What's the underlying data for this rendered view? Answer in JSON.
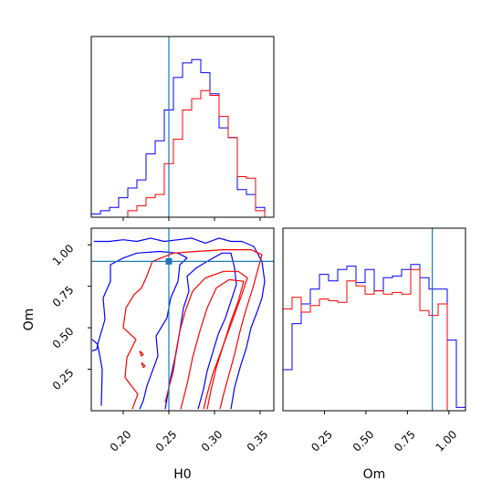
{
  "chart_data": {
    "type": "corner",
    "parameters": [
      "H0",
      "Om"
    ],
    "truth": {
      "H0": 0.25,
      "Om": 0.9
    },
    "colors": {
      "blue": "#0000ff",
      "red": "#ff0000",
      "truth": "#1f77b4"
    },
    "grid": false,
    "panels": [
      {
        "id": "hist-h0",
        "type": "histogram",
        "xlim": [
          0.165,
          0.365
        ],
        "ylim": [
          0,
          1
        ],
        "xticks": [
          0.2,
          0.25,
          0.3,
          0.35
        ],
        "show_tick_labels": false,
        "series": [
          {
            "color": "blue",
            "bins": [
              0.165,
              0.175,
              0.185,
              0.195,
              0.205,
              0.215,
              0.225,
              0.235,
              0.245,
              0.255,
              0.265,
              0.275,
              0.285,
              0.295,
              0.305,
              0.315,
              0.325,
              0.335,
              0.345,
              0.355
            ],
            "heights": [
              0.02,
              0.04,
              0.06,
              0.12,
              0.18,
              0.23,
              0.39,
              0.47,
              0.66,
              0.86,
              0.95,
              0.97,
              0.89,
              0.76,
              0.55,
              0.49,
              0.17,
              0.14,
              0.06
            ]
          },
          {
            "color": "red",
            "bins": [
              0.165,
              0.175,
              0.185,
              0.195,
              0.205,
              0.215,
              0.225,
              0.235,
              0.245,
              0.255,
              0.265,
              0.275,
              0.285,
              0.295,
              0.305,
              0.315,
              0.325,
              0.335,
              0.345,
              0.355
            ],
            "heights": [
              0,
              0,
              0,
              0,
              0.04,
              0.07,
              0.12,
              0.14,
              0.33,
              0.48,
              0.66,
              0.73,
              0.78,
              0.75,
              0.62,
              0.49,
              0.25,
              0.24,
              0.04
            ]
          }
        ]
      },
      {
        "id": "hist-om",
        "type": "histogram",
        "xlim": [
          0.0,
          1.1
        ],
        "ylim": [
          0,
          1
        ],
        "xticks": [
          0.25,
          0.5,
          0.75,
          1.0
        ],
        "tick_labels": [
          "0.25",
          "0.50",
          "0.75",
          "1.00"
        ],
        "xlabel": "Om",
        "series": [
          {
            "color": "blue",
            "bins": [
              0.0,
              0.055,
              0.11,
              0.165,
              0.22,
              0.275,
              0.33,
              0.385,
              0.44,
              0.495,
              0.55,
              0.605,
              0.66,
              0.715,
              0.77,
              0.825,
              0.88,
              0.935,
              0.99,
              1.045,
              1.1
            ],
            "heights": [
              0.25,
              0.53,
              0.65,
              0.74,
              0.83,
              0.79,
              0.86,
              0.88,
              0.78,
              0.86,
              0.73,
              0.81,
              0.82,
              0.86,
              0.89,
              0.81,
              0.74,
              0.74,
              0.43,
              0.02
            ]
          },
          {
            "color": "red",
            "bins": [
              0.0,
              0.055,
              0.11,
              0.165,
              0.22,
              0.275,
              0.33,
              0.385,
              0.44,
              0.495,
              0.55,
              0.605,
              0.66,
              0.715,
              0.77,
              0.825,
              0.88,
              0.935,
              0.99,
              1.045,
              1.1
            ],
            "heights": [
              0.62,
              0.69,
              0.6,
              0.64,
              0.68,
              0.67,
              0.66,
              0.79,
              0.76,
              0.71,
              0.73,
              0.71,
              0.72,
              0.71,
              0.86,
              0.61,
              0.58,
              0.65,
              0.0,
              0.0
            ]
          }
        ]
      },
      {
        "id": "scatter-h0-om",
        "type": "contour",
        "xlim": [
          0.165,
          0.365
        ],
        "ylim": [
          0.0,
          1.1
        ],
        "xticks": [
          0.2,
          0.25,
          0.3,
          0.35
        ],
        "tick_labels_x": [
          "0.20",
          "0.25",
          "0.30",
          "0.35"
        ],
        "yticks": [
          0.25,
          0.5,
          0.75,
          1.0
        ],
        "tick_labels_y": [
          "0.25",
          "0.50",
          "0.75",
          "1.00"
        ],
        "xlabel": "H0",
        "ylabel": "Om",
        "contours": [
          {
            "color": "blue",
            "points": [
              [
                0.168,
                1.02
              ],
              [
                0.185,
                1.02
              ],
              [
                0.2,
                1.03
              ],
              [
                0.215,
                1.02
              ],
              [
                0.23,
                1.04
              ],
              [
                0.245,
                1.02
              ],
              [
                0.26,
                1.03
              ],
              [
                0.275,
                1.04
              ],
              [
                0.29,
                1.01
              ],
              [
                0.305,
                1.04
              ],
              [
                0.318,
                1.02
              ],
              [
                0.33,
                1.02
              ],
              [
                0.343,
                0.99
              ],
              [
                0.352,
                0.9
              ],
              [
                0.355,
                0.78
              ],
              [
                0.352,
                0.68
              ],
              [
                0.347,
                0.6
              ],
              [
                0.34,
                0.5
              ],
              [
                0.335,
                0.38
              ],
              [
                0.328,
                0.26
              ],
              [
                0.322,
                0.14
              ],
              [
                0.318,
                0.01
              ]
            ]
          },
          {
            "color": "blue",
            "points": [
              [
                0.176,
                0.03
              ],
              [
                0.177,
                0.25
              ],
              [
                0.172,
                0.4
              ],
              [
                0.18,
                0.55
              ],
              [
                0.178,
                0.68
              ],
              [
                0.186,
                0.78
              ],
              [
                0.186,
                0.88
              ],
              [
                0.2,
                0.92
              ],
              [
                0.215,
                0.95
              ],
              [
                0.24,
                0.96
              ],
              [
                0.26,
                0.95
              ],
              [
                0.27,
                0.92
              ],
              [
                0.262,
                0.88
              ],
              [
                0.26,
                0.78
              ],
              [
                0.252,
                0.68
              ],
              [
                0.248,
                0.56
              ],
              [
                0.236,
                0.45
              ],
              [
                0.238,
                0.33
              ],
              [
                0.232,
                0.24
              ],
              [
                0.226,
                0.15
              ],
              [
                0.222,
                0.06
              ],
              [
                0.218,
                0.01
              ]
            ]
          },
          {
            "color": "blue",
            "points": [
              [
                0.246,
                0.01
              ],
              [
                0.252,
                0.2
              ],
              [
                0.258,
                0.35
              ],
              [
                0.262,
                0.48
              ],
              [
                0.266,
                0.62
              ],
              [
                0.272,
                0.72
              ],
              [
                0.27,
                0.81
              ],
              [
                0.28,
                0.86
              ],
              [
                0.292,
                0.9
              ],
              [
                0.308,
                0.95
              ],
              [
                0.318,
                0.95
              ],
              [
                0.322,
                0.86
              ],
              [
                0.324,
                0.76
              ],
              [
                0.318,
                0.66
              ],
              [
                0.312,
                0.56
              ],
              [
                0.304,
                0.46
              ],
              [
                0.298,
                0.35
              ],
              [
                0.292,
                0.24
              ],
              [
                0.288,
                0.13
              ],
              [
                0.282,
                0.01
              ]
            ]
          },
          {
            "color": "blue",
            "points": [
              [
                0.166,
                0.43
              ],
              [
                0.172,
                0.4
              ],
              [
                0.171,
                0.37
              ],
              [
                0.166,
                0.36
              ]
            ]
          },
          {
            "color": "red",
            "points": [
              [
                0.21,
                0.01
              ],
              [
                0.216,
                0.1
              ],
              [
                0.202,
                0.2
              ],
              [
                0.204,
                0.32
              ],
              [
                0.214,
                0.43
              ],
              [
                0.2,
                0.5
              ],
              [
                0.203,
                0.62
              ],
              [
                0.212,
                0.7
              ],
              [
                0.22,
                0.74
              ],
              [
                0.225,
                0.8
              ],
              [
                0.232,
                0.9
              ],
              [
                0.255,
                0.95
              ],
              [
                0.28,
                0.96
              ],
              [
                0.31,
                0.97
              ],
              [
                0.34,
                0.97
              ],
              [
                0.352,
                0.94
              ],
              [
                0.348,
                0.86
              ],
              [
                0.342,
                0.74
              ],
              [
                0.334,
                0.6
              ],
              [
                0.328,
                0.48
              ],
              [
                0.322,
                0.34
              ],
              [
                0.316,
                0.22
              ],
              [
                0.31,
                0.1
              ],
              [
                0.306,
                0.01
              ]
            ]
          },
          {
            "color": "red",
            "points": [
              [
                0.246,
                0.05
              ],
              [
                0.25,
                0.14
              ],
              [
                0.255,
                0.24
              ],
              [
                0.258,
                0.36
              ],
              [
                0.262,
                0.48
              ],
              [
                0.268,
                0.6
              ],
              [
                0.276,
                0.72
              ],
              [
                0.29,
                0.8
              ],
              [
                0.31,
                0.84
              ],
              [
                0.326,
                0.84
              ],
              [
                0.336,
                0.8
              ],
              [
                0.33,
                0.7
              ],
              [
                0.322,
                0.58
              ],
              [
                0.314,
                0.46
              ],
              [
                0.306,
                0.34
              ],
              [
                0.298,
                0.22
              ],
              [
                0.292,
                0.1
              ],
              [
                0.288,
                0.01
              ]
            ]
          },
          {
            "color": "red",
            "points": [
              [
                0.263,
                0.01
              ],
              [
                0.27,
                0.16
              ],
              [
                0.276,
                0.32
              ],
              [
                0.284,
                0.48
              ],
              [
                0.292,
                0.62
              ],
              [
                0.302,
                0.74
              ],
              [
                0.316,
                0.79
              ],
              [
                0.332,
                0.78
              ],
              [
                0.326,
                0.66
              ],
              [
                0.318,
                0.54
              ],
              [
                0.31,
                0.4
              ],
              [
                0.302,
                0.26
              ],
              [
                0.296,
                0.12
              ],
              [
                0.292,
                0.01
              ]
            ]
          },
          {
            "color": "red",
            "points": [
              [
                0.22,
                0.29
              ],
              [
                0.222,
                0.26
              ],
              [
                0.224,
                0.27
              ],
              [
                0.22,
                0.29
              ]
            ]
          },
          {
            "color": "red",
            "points": [
              [
                0.218,
                0.36
              ],
              [
                0.222,
                0.34
              ],
              [
                0.22,
                0.33
              ],
              [
                0.218,
                0.36
              ]
            ]
          }
        ]
      }
    ]
  }
}
